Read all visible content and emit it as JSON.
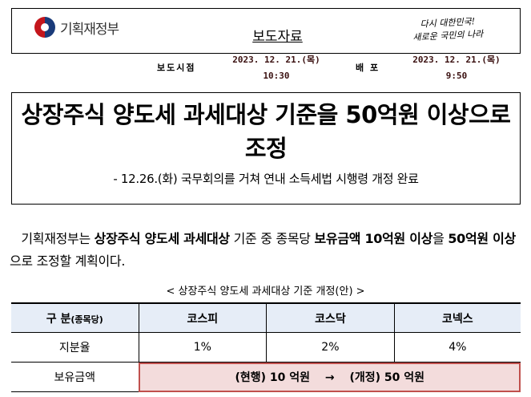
{
  "header": {
    "ministry": "기획재정부",
    "doc_type": "보도자료",
    "slogan_line1": "다시 대한민국!",
    "slogan_line2": "새로운 국민의 나라"
  },
  "release": {
    "embargo_label": "보도시점",
    "embargo_date": "2023. 12. 21.(목)",
    "embargo_time": "10:30",
    "dist_label": "배 포",
    "dist_date": "2023. 12. 21.(목)",
    "dist_time": "9:50"
  },
  "title": {
    "main": "상장주식 양도세 과세대상 기준을 50억원 이상으로 조정",
    "sub": "- 12.26.(화) 국무회의를 거쳐 연내 소득세법 시행령 개정 완료"
  },
  "body": {
    "p1": "기획재정부는 ",
    "b1": "상장주식 양도세 과세대상",
    "p2": " 기준 중 종목당 ",
    "b2": "보유금액 10억원 이상",
    "p3": "을 ",
    "b3": "50억원 이상",
    "p4": "으로 조정할 계획이다."
  },
  "table": {
    "caption": "< 상장주식 양도세 과세대상 기준 개정(안) >",
    "header_main": "구 분",
    "header_sub": "(종목당)",
    "columns": [
      "코스피",
      "코스닥",
      "코넥스"
    ],
    "rows": [
      {
        "label": "지분율",
        "values": [
          "1%",
          "2%",
          "4%"
        ]
      },
      {
        "label": "보유금액",
        "merged": "(현행) 10 억원　 →　 (개정) 50 억원"
      }
    ]
  }
}
